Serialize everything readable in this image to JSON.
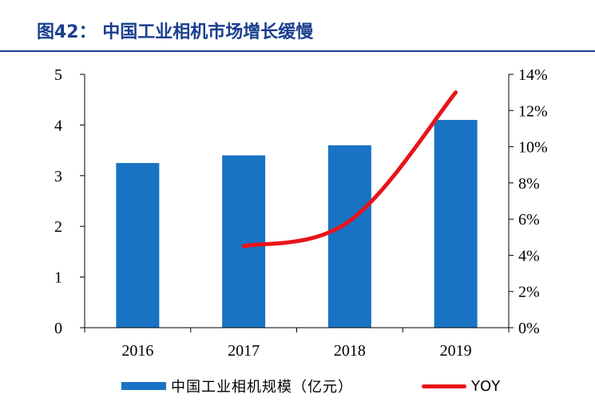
{
  "figure": {
    "title": "图42：  中国工业相机市场增长缓慢"
  },
  "colors": {
    "bar": "#1873c4",
    "line": "#e8141a",
    "title": "#1a3f8f"
  },
  "chart_data": {
    "type": "bar",
    "categories": [
      "2016",
      "2017",
      "2018",
      "2019"
    ],
    "series": [
      {
        "name": "中国工业相机规模（亿元）",
        "type": "bar",
        "axis": "left",
        "values": [
          3.25,
          3.4,
          3.6,
          4.1
        ]
      },
      {
        "name": "YOY",
        "type": "line",
        "axis": "right",
        "values": [
          null,
          0.045,
          0.059,
          0.13
        ]
      }
    ],
    "y_left": {
      "min": 0,
      "max": 5,
      "ticks": [
        "0",
        "1",
        "2",
        "3",
        "4",
        "5"
      ],
      "values": [
        0,
        1,
        2,
        3,
        4,
        5
      ]
    },
    "y_right": {
      "min": 0,
      "max": 0.14,
      "ticks": [
        "0%",
        "2%",
        "4%",
        "6%",
        "8%",
        "10%",
        "12%",
        "14%"
      ],
      "values": [
        0,
        0.02,
        0.04,
        0.06,
        0.08,
        0.1,
        0.12,
        0.14
      ]
    },
    "legend": "bottom",
    "grid": false
  }
}
